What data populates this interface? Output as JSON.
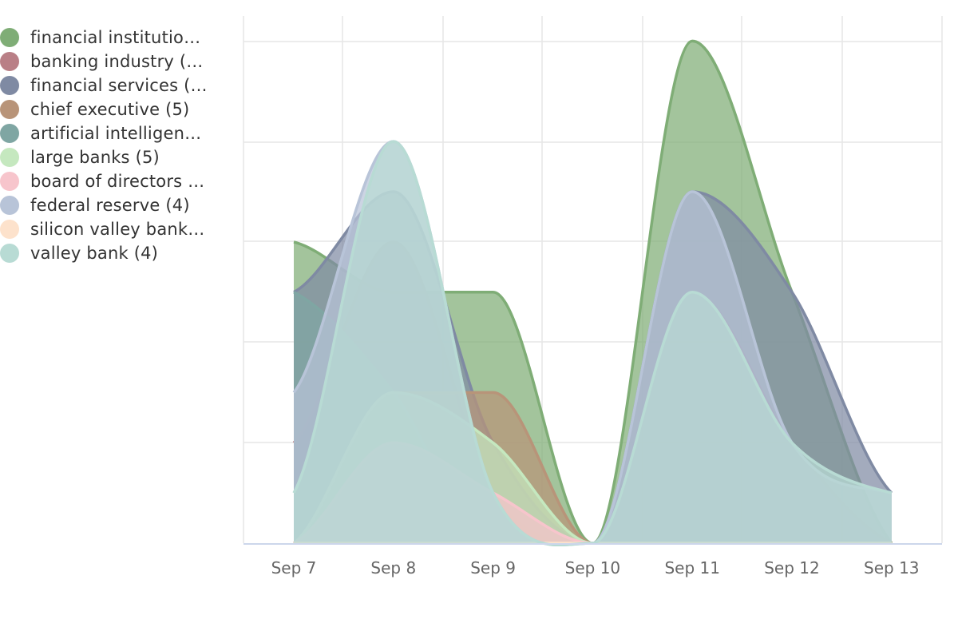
{
  "chart_data": {
    "type": "area",
    "x": [
      "Sep 7",
      "Sep 8",
      "Sep 9",
      "Sep 10",
      "Sep 11",
      "Sep 12",
      "Sep 13"
    ],
    "ylim": [
      0,
      10.5
    ],
    "grid": true,
    "legend_position": "left",
    "series": [
      {
        "name": "financial institutio…",
        "color": "#7fad76",
        "values": [
          6,
          5,
          5,
          0,
          10,
          5,
          0
        ]
      },
      {
        "name": "banking industry (…",
        "color": "#b97f86",
        "values": [
          2,
          6,
          1,
          0,
          5,
          2,
          0
        ]
      },
      {
        "name": "financial services (…",
        "color": "#7f8aa3",
        "values": [
          5,
          7,
          2,
          0,
          7,
          5,
          1
        ]
      },
      {
        "name": "chief executive (5)",
        "color": "#b89479",
        "values": [
          0,
          3,
          3,
          0,
          0,
          0,
          0
        ]
      },
      {
        "name": "artificial intelligen…",
        "color": "#7fa6a3",
        "values": [
          5,
          3,
          0,
          0,
          0,
          0,
          0
        ]
      },
      {
        "name": "large banks (5)",
        "color": "#c5e8bf",
        "values": [
          0,
          3,
          2,
          0,
          0,
          0,
          0
        ]
      },
      {
        "name": "board of directors …",
        "color": "#f7c5cc",
        "values": [
          0,
          2,
          1,
          0,
          0,
          0,
          0
        ]
      },
      {
        "name": "federal reserve (4)",
        "color": "#b8c4d8",
        "values": [
          3,
          8,
          1,
          0,
          7,
          2,
          1
        ]
      },
      {
        "name": "silicon valley bank…",
        "color": "#fde2cc",
        "values": [
          0,
          0,
          0,
          0,
          0,
          0,
          0
        ]
      },
      {
        "name": "valley bank (4)",
        "color": "#b8dbd4",
        "values": [
          1,
          8,
          1,
          0,
          5,
          2,
          1
        ]
      }
    ]
  }
}
